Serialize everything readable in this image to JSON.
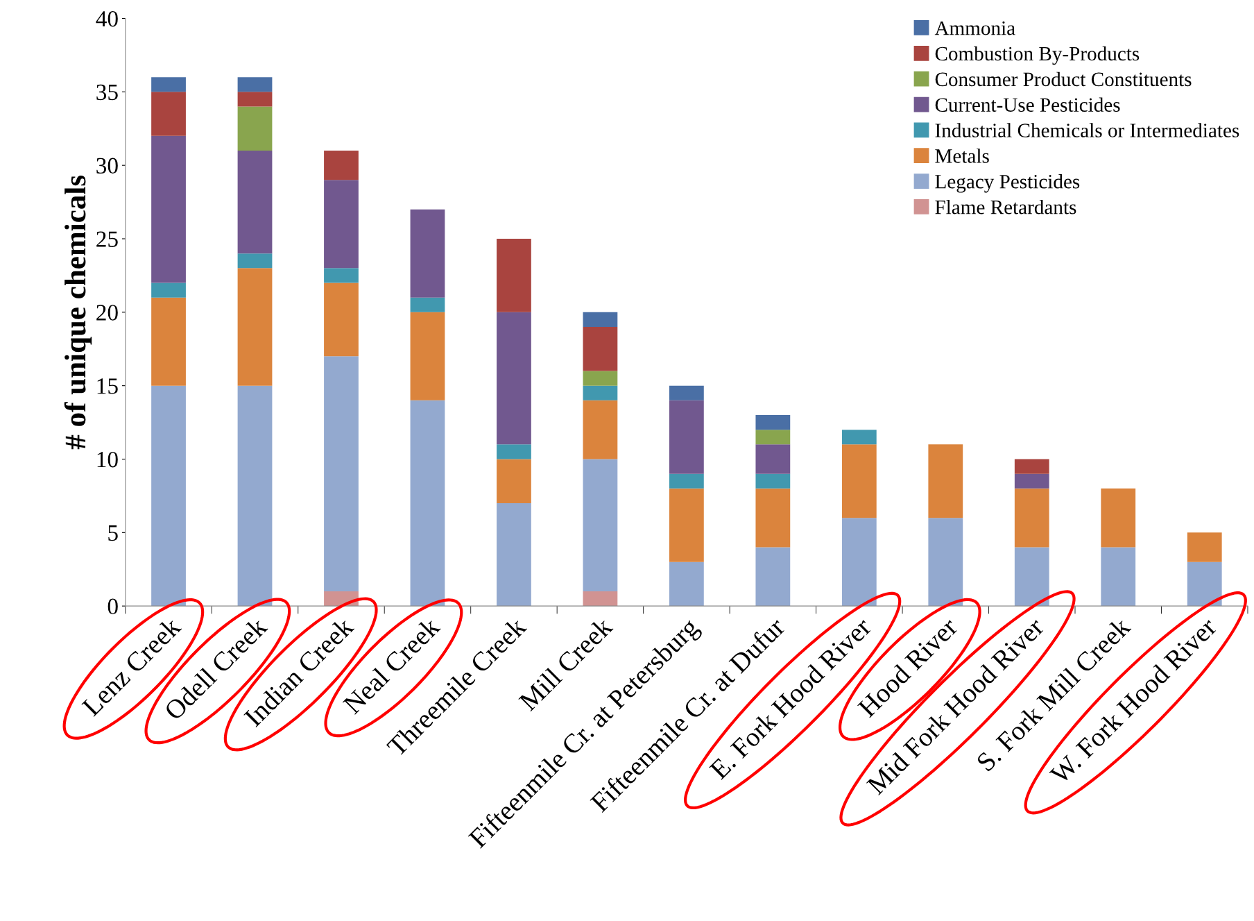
{
  "chart_data": {
    "type": "bar",
    "stacked": true,
    "ylabel": "# of unique chemicals",
    "categories": [
      "Lenz Creek",
      "Odell Creek",
      "Indian Creek",
      "Neal Creek",
      "Threemile Creek",
      "Mill Creek",
      "Fifteenmile Cr. at Petersburg",
      "Fifteenmile Cr. at Dufur",
      "E. Fork Hood River",
      "Hood River",
      "Mid Fork Hood River",
      "S. Fork Mill Creek",
      "W. Fork Hood River"
    ],
    "series": [
      {
        "name": "Flame Retardants",
        "color": "#d19392",
        "values": [
          0,
          0,
          1,
          0,
          0,
          1,
          0,
          0,
          0,
          0,
          0,
          0,
          0
        ]
      },
      {
        "name": "Legacy Pesticides",
        "color": "#93a9cf",
        "values": [
          15,
          15,
          16,
          14,
          7,
          9,
          3,
          4,
          6,
          6,
          4,
          4,
          3
        ]
      },
      {
        "name": "Metals",
        "color": "#db843d",
        "values": [
          6,
          8,
          5,
          6,
          3,
          4,
          5,
          4,
          5,
          5,
          4,
          4,
          2
        ]
      },
      {
        "name": "Industrial Chemicals or Intermediates",
        "color": "#4198af",
        "values": [
          1,
          1,
          1,
          1,
          1,
          1,
          1,
          1,
          1,
          0,
          0,
          0,
          0
        ]
      },
      {
        "name": "Current-Use Pesticides",
        "color": "#71588f",
        "values": [
          10,
          7,
          6,
          6,
          9,
          0,
          5,
          2,
          0,
          0,
          1,
          0,
          0
        ]
      },
      {
        "name": "Consumer Product Constituents",
        "color": "#89a54e",
        "values": [
          0,
          3,
          0,
          0,
          0,
          1,
          0,
          1,
          0,
          0,
          0,
          0,
          0
        ]
      },
      {
        "name": "Combustion By-Products",
        "color": "#a9443f",
        "values": [
          3,
          1,
          2,
          0,
          5,
          3,
          0,
          0,
          0,
          0,
          1,
          0,
          0
        ]
      },
      {
        "name": "Ammonia",
        "color": "#4a6fa5",
        "values": [
          1,
          1,
          0,
          0,
          0,
          1,
          1,
          1,
          0,
          0,
          0,
          0,
          0
        ]
      }
    ],
    "ylim": [
      0,
      40
    ],
    "yticks": [
      0,
      5,
      10,
      15,
      20,
      25,
      30,
      35,
      40
    ],
    "grid": false,
    "legend": "top right"
  }
}
